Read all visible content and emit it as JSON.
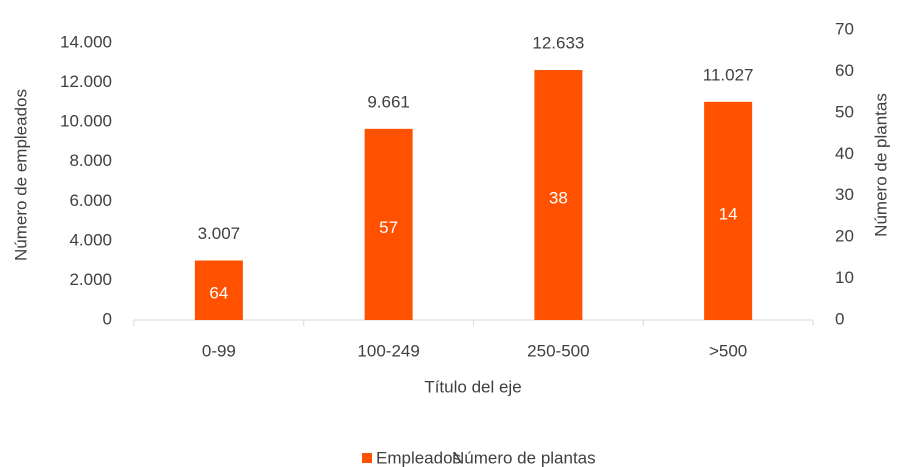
{
  "chart_data": {
    "type": "bar",
    "x_label": "Título del eje",
    "y_label": "Número de empleados",
    "y2_label": "Número de plantas",
    "categories": [
      "0-99",
      "100-249",
      "250-500",
      ">500"
    ],
    "series": [
      {
        "name": "Empleados",
        "color": "#ff5100",
        "values": [
          3007,
          9661,
          12633,
          11027
        ],
        "value_labels": [
          "3.007",
          "9.661",
          "12.633",
          "11.027"
        ]
      },
      {
        "name": "Número de plantas",
        "axis": "y2",
        "values": [
          64,
          57,
          38,
          14
        ]
      }
    ],
    "ylim": [
      0,
      14000
    ],
    "yticks": [
      0,
      {
        "value": 2000,
        "label": "2.000"
      },
      {
        "value": 4000,
        "label": "4.000"
      },
      {
        "value": 6000,
        "label": "6.000"
      },
      {
        "value": 8000,
        "label": "8.000"
      },
      {
        "value": 10000,
        "label": "10.000"
      },
      {
        "value": 12000,
        "label": "12.000"
      },
      {
        "value": 14000,
        "label": "14.000"
      }
    ],
    "y2lim": [
      0,
      70
    ],
    "y2ticks": [
      0,
      10,
      20,
      30,
      40,
      50,
      60,
      70
    ],
    "grid": false,
    "legend": "bottom"
  }
}
